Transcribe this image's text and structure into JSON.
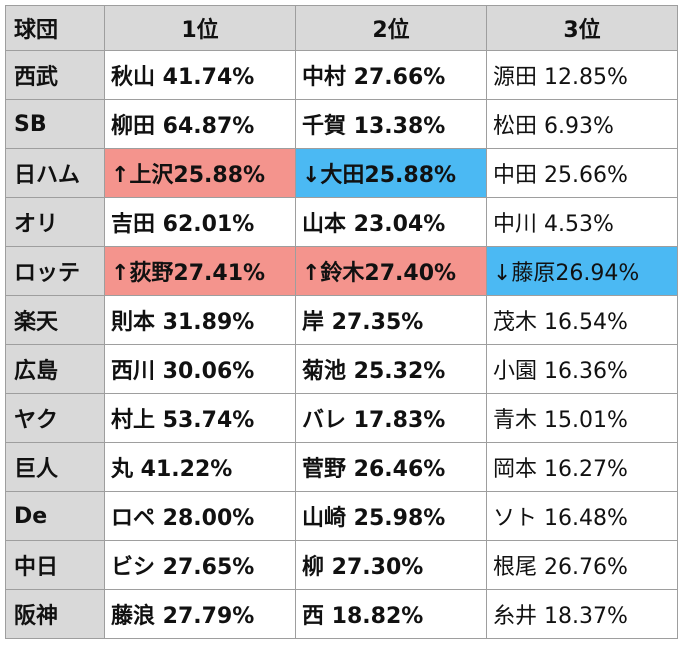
{
  "header": {
    "team": "球団",
    "rank1": "1位",
    "rank2": "2位",
    "rank3": "3位"
  },
  "colors": {
    "header_bg": "#d9d9d9",
    "up_highlight": "#f4948d",
    "down_highlight": "#4bb9f3"
  },
  "rows": [
    {
      "team": "西武",
      "r1": "秋山 41.74%",
      "r2": "中村 27.66%",
      "r3": "源田 12.85%"
    },
    {
      "team": "SB",
      "r1": "柳田 64.87%",
      "r2": "千賀 13.38%",
      "r3": "松田 6.93%"
    },
    {
      "team": "日ハム",
      "r1": "↑上沢25.88%",
      "r2": "↓大田25.88%",
      "r3": "中田 25.66%"
    },
    {
      "team": "オリ",
      "r1": "吉田 62.01%",
      "r2": "山本 23.04%",
      "r3": "中川 4.53%"
    },
    {
      "team": "ロッテ",
      "r1": "↑荻野27.41%",
      "r2": "↑鈴木27.40%",
      "r3": "↓藤原26.94%"
    },
    {
      "team": "楽天",
      "r1": "則本 31.89%",
      "r2": "岸 27.35%",
      "r3": "茂木 16.54%"
    },
    {
      "team": "広島",
      "r1": "西川 30.06%",
      "r2": "菊池 25.32%",
      "r3": "小園 16.36%"
    },
    {
      "team": "ヤク",
      "r1": "村上 53.74%",
      "r2": "バレ 17.83%",
      "r3": "青木 15.01%"
    },
    {
      "team": "巨人",
      "r1": "丸 41.22%",
      "r2": "菅野 26.46%",
      "r3": "岡本 16.27%"
    },
    {
      "team": "De",
      "r1": "ロペ 28.00%",
      "r2": "山崎 25.98%",
      "r3": "ソト 16.48%"
    },
    {
      "team": "中日",
      "r1": "ビシ 27.65%",
      "r2": "柳 27.30%",
      "r3": "根尾 26.76%"
    },
    {
      "team": "阪神",
      "r1": "藤浪 27.79%",
      "r2": "西 18.82%",
      "r3": "糸井 18.37%"
    }
  ]
}
